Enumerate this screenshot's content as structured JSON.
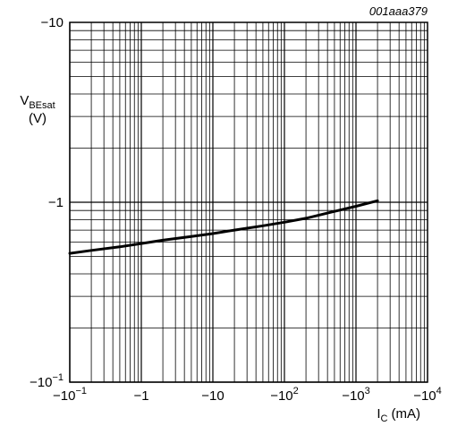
{
  "figure_code": "001aaa379",
  "chart_data": {
    "type": "line",
    "y_axis": {
      "label_main": "V",
      "label_sub": "BEsat",
      "unit": "(V)",
      "scale": "log",
      "magnitude_range": [
        0.1,
        10
      ],
      "ticks": [
        {
          "value": -10,
          "text": "−10",
          "exp": ""
        },
        {
          "value": -1,
          "text": "−1",
          "exp": ""
        },
        {
          "value": -0.1,
          "text": "−10",
          "exp": "−1"
        }
      ]
    },
    "x_axis": {
      "label_main": "I",
      "label_sub": "C",
      "unit": "(mA)",
      "scale": "log",
      "magnitude_range": [
        0.1,
        10000
      ],
      "ticks": [
        {
          "value": -0.1,
          "text": "−10",
          "exp": "−1"
        },
        {
          "value": -1,
          "text": "−1",
          "exp": ""
        },
        {
          "value": -10,
          "text": "−10",
          "exp": ""
        },
        {
          "value": -100,
          "text": "−10",
          "exp": "2"
        },
        {
          "value": -1000,
          "text": "−10",
          "exp": "3"
        },
        {
          "value": -10000,
          "text": "−10",
          "exp": "4"
        }
      ]
    },
    "grid": true,
    "series": [
      {
        "x": [
          -0.1,
          -0.2,
          -0.5,
          -1,
          -2,
          -5,
          -10,
          -20,
          -50,
          -100,
          -200,
          -500,
          -1000,
          -2000
        ],
        "y": [
          -0.52,
          -0.54,
          -0.565,
          -0.59,
          -0.615,
          -0.645,
          -0.67,
          -0.7,
          -0.74,
          -0.775,
          -0.815,
          -0.89,
          -0.95,
          -1.02
        ]
      }
    ]
  }
}
